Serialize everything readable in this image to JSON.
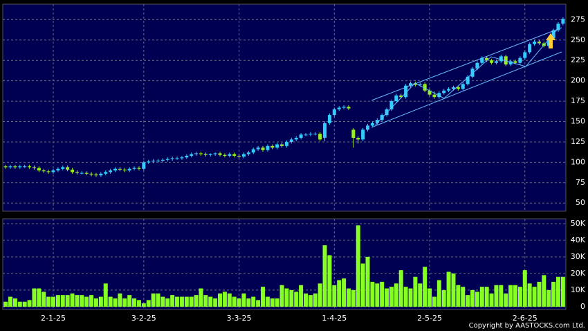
{
  "chart_data": [
    {
      "type": "candlestick",
      "up_color": "#33ccff",
      "down_color": "#99ee22",
      "grid": true,
      "ylim": [
        40,
        294
      ],
      "yticks": [
        50,
        75,
        100,
        125,
        150,
        175,
        200,
        225,
        250,
        275
      ],
      "xlim": [
        -0.6,
        117.6
      ],
      "open": [
        95,
        94,
        95,
        94,
        95,
        95,
        94,
        93,
        90,
        89,
        88,
        90,
        92,
        94,
        91,
        88,
        87,
        87,
        86,
        85,
        84,
        86,
        88,
        90,
        92,
        91,
        90,
        92,
        93,
        92,
        100,
        101,
        102,
        102,
        103,
        104,
        105,
        105,
        106,
        108,
        110,
        111,
        110,
        109,
        110,
        111,
        109,
        108,
        110,
        108,
        107,
        110,
        112,
        116,
        118,
        115,
        120,
        118,
        122,
        120,
        125,
        128,
        130,
        134,
        134,
        135,
        135,
        130,
        148,
        158,
        165,
        167,
        168,
        140,
        130,
        128,
        140,
        145,
        148,
        152,
        158,
        165,
        175,
        182,
        180,
        194,
        197,
        195,
        196,
        188,
        183,
        180,
        185,
        188,
        190,
        192,
        190,
        196,
        205,
        215,
        222,
        228,
        225,
        222,
        224,
        230,
        220,
        224,
        222,
        228,
        235,
        245,
        248,
        246,
        243,
        252,
        262,
        270
      ],
      "high": [
        97,
        97,
        97,
        97,
        97,
        97,
        96,
        95,
        92,
        91,
        92,
        94,
        96,
        96,
        93,
        90,
        89,
        89,
        88,
        87,
        88,
        90,
        92,
        94,
        94,
        93,
        94,
        95,
        95,
        102,
        103,
        104,
        104,
        105,
        106,
        107,
        107,
        108,
        110,
        112,
        113,
        113,
        112,
        111,
        112,
        113,
        111,
        112,
        112,
        110,
        112,
        114,
        118,
        120,
        120,
        122,
        122,
        124,
        124,
        127,
        130,
        132,
        136,
        136,
        137,
        137,
        137,
        150,
        160,
        167,
        169,
        170,
        170,
        142,
        132,
        142,
        147,
        150,
        154,
        160,
        167,
        177,
        184,
        184,
        196,
        199,
        199,
        198,
        198,
        190,
        187,
        187,
        190,
        192,
        194,
        194,
        198,
        207,
        217,
        224,
        230,
        230,
        227,
        226,
        232,
        232,
        226,
        226,
        230,
        237,
        247,
        250,
        250,
        248,
        254,
        264,
        272,
        278
      ],
      "low": [
        92,
        92,
        92,
        92,
        93,
        92,
        91,
        88,
        87,
        86,
        86,
        88,
        90,
        89,
        86,
        85,
        85,
        84,
        83,
        82,
        82,
        84,
        86,
        88,
        89,
        88,
        88,
        90,
        90,
        90,
        98,
        99,
        100,
        100,
        101,
        102,
        103,
        103,
        104,
        106,
        108,
        108,
        107,
        107,
        108,
        107,
        106,
        106,
        106,
        105,
        105,
        108,
        110,
        114,
        113,
        113,
        116,
        116,
        118,
        118,
        123,
        126,
        128,
        132,
        132,
        133,
        126,
        126,
        146,
        156,
        163,
        165,
        164,
        118,
        123,
        126,
        138,
        143,
        146,
        150,
        156,
        163,
        173,
        178,
        178,
        192,
        193,
        193,
        186,
        181,
        178,
        178,
        183,
        186,
        188,
        188,
        188,
        194,
        203,
        213,
        220,
        223,
        220,
        220,
        222,
        218,
        218,
        220,
        220,
        226,
        233,
        243,
        244,
        241,
        241,
        250,
        260,
        268
      ],
      "close": [
        94,
        95,
        94,
        95,
        95,
        94,
        93,
        90,
        89,
        88,
        90,
        92,
        94,
        91,
        88,
        87,
        87,
        86,
        85,
        84,
        86,
        88,
        90,
        92,
        91,
        90,
        92,
        93,
        92,
        100,
        101,
        102,
        102,
        103,
        104,
        105,
        105,
        106,
        108,
        110,
        111,
        110,
        109,
        110,
        111,
        109,
        108,
        110,
        108,
        107,
        110,
        112,
        116,
        118,
        115,
        120,
        118,
        122,
        120,
        125,
        128,
        130,
        134,
        134,
        135,
        135,
        128,
        148,
        158,
        165,
        167,
        168,
        166,
        130,
        128,
        140,
        145,
        148,
        152,
        158,
        165,
        175,
        182,
        180,
        194,
        197,
        195,
        196,
        188,
        183,
        180,
        185,
        188,
        190,
        192,
        190,
        196,
        205,
        215,
        222,
        228,
        225,
        222,
        224,
        230,
        220,
        224,
        222,
        228,
        235,
        245,
        248,
        246,
        243,
        252,
        262,
        270,
        276
      ]
    },
    {
      "type": "bar",
      "color": "#88ff22",
      "grid": true,
      "ylim": [
        -1700,
        52900
      ],
      "yticks": [
        {
          "value": 0,
          "label": "0"
        },
        {
          "value": 10000,
          "label": "10K"
        },
        {
          "value": 20000,
          "label": "20K"
        },
        {
          "value": 30000,
          "label": "30K"
        },
        {
          "value": 40000,
          "label": "40K"
        },
        {
          "value": 50000,
          "label": "50K"
        }
      ],
      "xlim": [
        -0.6,
        117.6
      ],
      "xticks": [
        {
          "value": 10,
          "label": "2-1-25"
        },
        {
          "value": 29,
          "label": "3-2-25"
        },
        {
          "value": 49,
          "label": "3-3-25"
        },
        {
          "value": 69,
          "label": "1-4-25"
        },
        {
          "value": 89,
          "label": "2-5-25"
        },
        {
          "value": 109,
          "label": "2-6-25"
        }
      ],
      "values": [
        3000,
        6000,
        5000,
        3000,
        3000,
        4000,
        11000,
        11000,
        9000,
        6000,
        6000,
        7000,
        7000,
        7000,
        8000,
        7000,
        7000,
        6000,
        7000,
        5000,
        6000,
        14000,
        6000,
        5000,
        8000,
        5000,
        7000,
        5000,
        4000,
        2000,
        4000,
        8000,
        8000,
        6000,
        5000,
        7000,
        6000,
        6000,
        6000,
        6000,
        7000,
        11000,
        7000,
        6000,
        5000,
        8000,
        9000,
        8000,
        6000,
        5000,
        8000,
        5000,
        6000,
        4000,
        12000,
        6000,
        5000,
        5000,
        13000,
        11000,
        10000,
        9000,
        13000,
        8000,
        7000,
        8000,
        14000,
        37000,
        31000,
        13000,
        16000,
        17000,
        11000,
        10000,
        49000,
        26000,
        30000,
        15000,
        14000,
        15000,
        11000,
        12000,
        14000,
        22000,
        12000,
        11000,
        18000,
        14000,
        24000,
        11000,
        6000,
        16000,
        10000,
        21000,
        20000,
        13000,
        12000,
        7000,
        10000,
        9000,
        12000,
        12000,
        8000,
        13000,
        13000,
        8000,
        13000,
        13000,
        12000,
        22000,
        14000,
        12000,
        15000,
        19000,
        10000,
        15000,
        18000,
        18000
      ]
    }
  ],
  "copyright": "Copyright by AASTOCKS.com Ltd."
}
